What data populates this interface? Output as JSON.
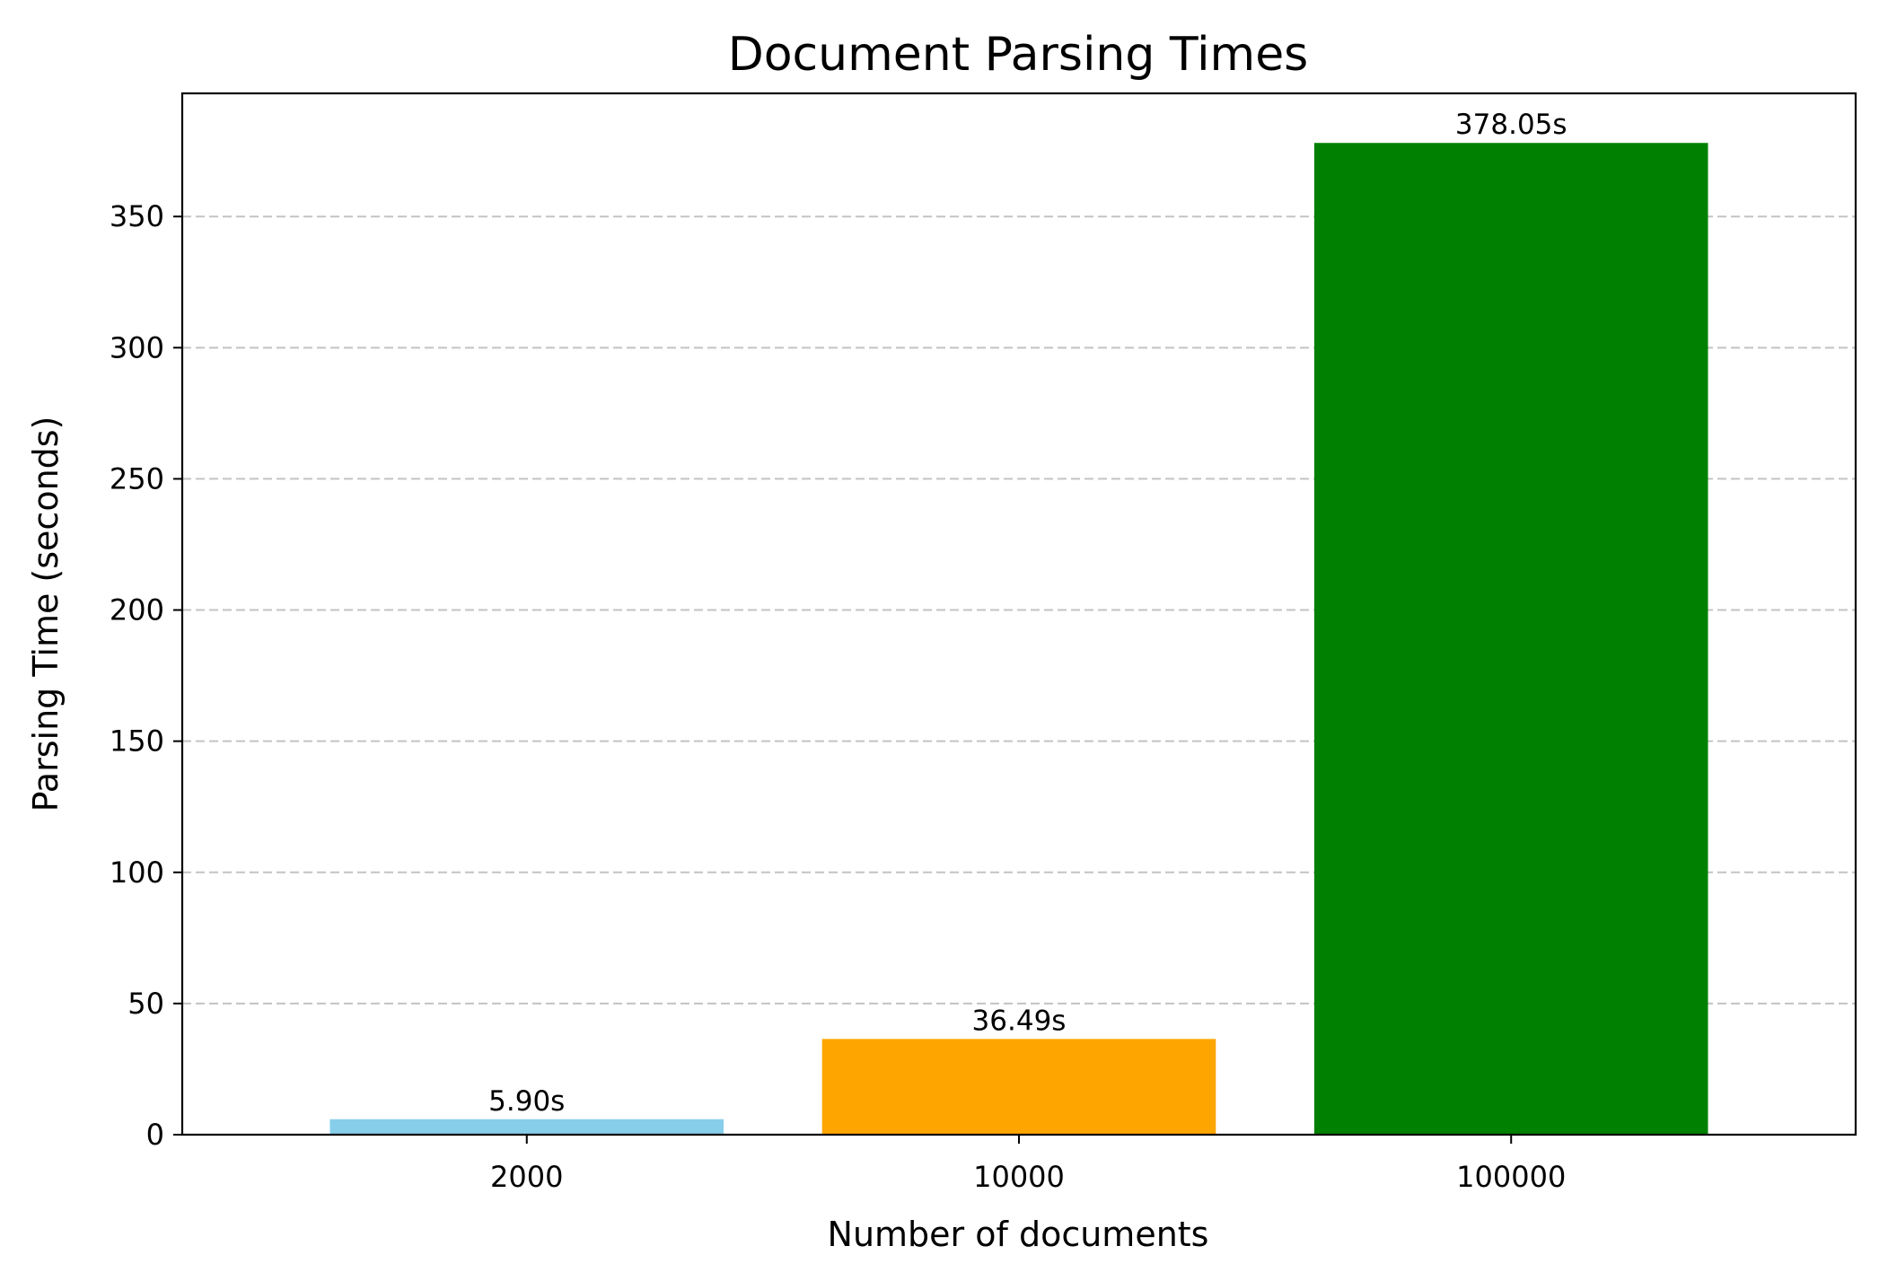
{
  "chart_data": {
    "type": "bar",
    "title": "Document Parsing Times",
    "xlabel": "Number of documents",
    "ylabel": "Parsing Time (seconds)",
    "categories": [
      "2000",
      "10000",
      "100000"
    ],
    "values": [
      5.9,
      36.49,
      378.05
    ],
    "data_labels": [
      "5.90s",
      "36.49s",
      "378.05s"
    ],
    "colors": [
      "#87ceeb",
      "#ffa500",
      "#008000"
    ],
    "yticks": [
      0,
      50,
      100,
      150,
      200,
      250,
      300,
      350
    ],
    "ylim": [
      0,
      396.95
    ],
    "grid": "y-dashed",
    "legend": "none"
  }
}
